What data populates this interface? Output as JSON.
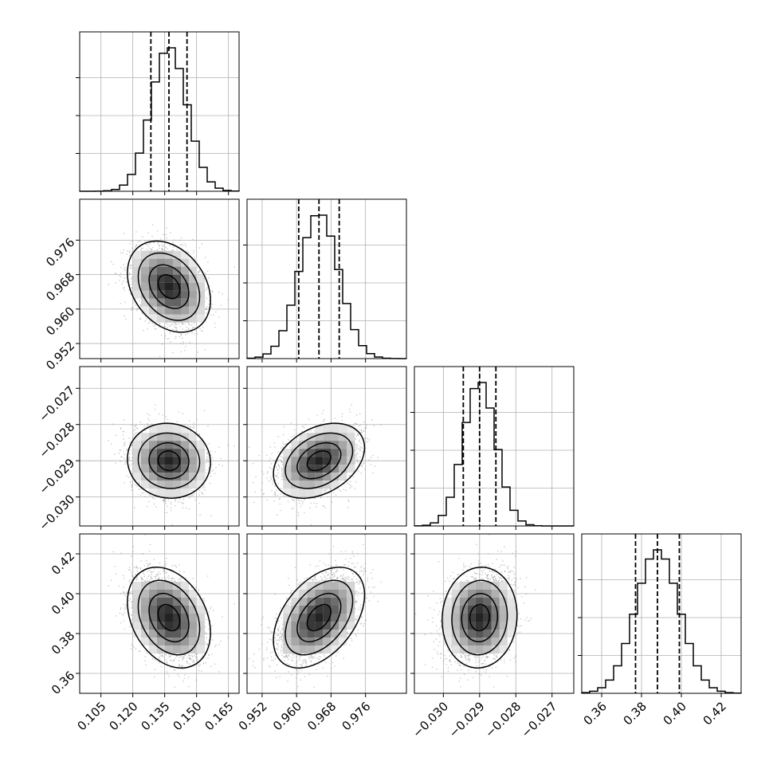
{
  "chart_data": {
    "type": "corner",
    "grid": true,
    "colors": {
      "hist": "#000000",
      "contour": "#000000",
      "points": "#8a8a8a",
      "quantile": "#000000"
    },
    "parameters": [
      {
        "index": 0,
        "range": [
          0.095,
          0.17
        ],
        "ticks": [
          0.105,
          0.12,
          0.135,
          0.15,
          0.165
        ],
        "tick_labels": [
          "0.105",
          "0.120",
          "0.135",
          "0.150",
          "0.165"
        ],
        "mean": 0.137,
        "std": 0.0085,
        "quantiles": [
          0.1285,
          0.137,
          0.1455
        ]
      },
      {
        "index": 1,
        "range": [
          0.9485,
          0.9855
        ],
        "ticks": [
          0.952,
          0.96,
          0.968,
          0.976
        ],
        "tick_labels": [
          "0.952",
          "0.960",
          "0.968",
          "0.976"
        ],
        "mean": 0.9652,
        "std": 0.0046,
        "quantiles": [
          0.9605,
          0.9652,
          0.9699
        ]
      },
      {
        "index": 2,
        "range": [
          -0.0308,
          -0.0264
        ],
        "ticks": [
          -0.03,
          -0.029,
          -0.028,
          -0.027
        ],
        "tick_labels": [
          "−0.030",
          "−0.029",
          "−0.028",
          "−0.027"
        ],
        "mean": -0.029,
        "std": 0.00045,
        "quantiles": [
          -0.02945,
          -0.029,
          -0.02855
        ]
      },
      {
        "index": 3,
        "range": [
          0.35,
          0.43
        ],
        "ticks": [
          0.36,
          0.38,
          0.4,
          0.42
        ],
        "tick_labels": [
          "0.36",
          "0.38",
          "0.40",
          "0.42"
        ],
        "mean": 0.388,
        "std": 0.011,
        "quantiles": [
          0.377,
          0.388,
          0.399
        ]
      }
    ],
    "correlations": {
      "1-0": -0.3,
      "2-0": -0.05,
      "3-0": -0.3,
      "2-1": 0.35,
      "3-1": 0.45,
      "3-2": 0.05
    }
  }
}
